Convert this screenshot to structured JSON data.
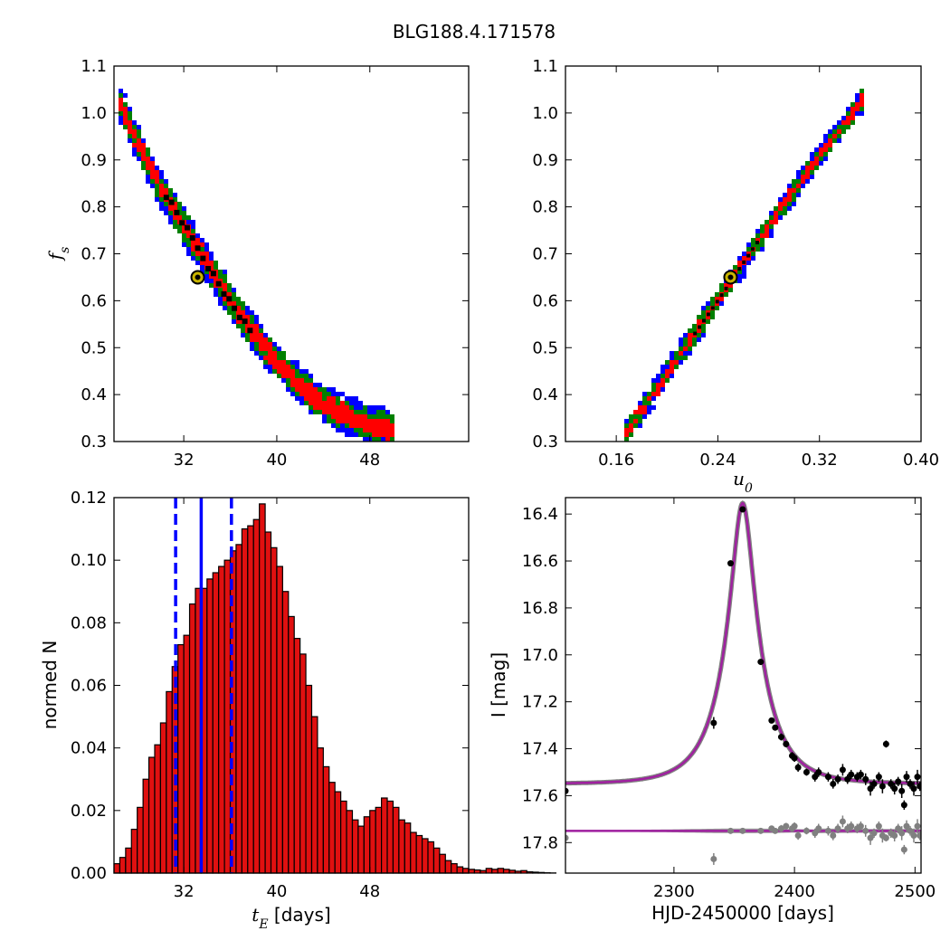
{
  "figure_title": "BLG188.4.171578",
  "colors": {
    "sigma3": "#0000ff",
    "sigma2": "#008000",
    "sigma1": "#ff0000",
    "sample": "#000000",
    "best_fit_marker": "#c8b400",
    "hist_bar": "#e01010",
    "hist_lines": "#0000ff",
    "model_curve": "#a020a0",
    "data_points": "#000000",
    "residual_points": "#808080"
  },
  "chart_data": [
    {
      "id": "tE-fs",
      "type": "heatmap",
      "xlabel": "",
      "ylabel": "f_s",
      "xlim": [
        26,
        56.5
      ],
      "ylim": [
        0.3,
        1.1
      ],
      "xticks": [
        32,
        40,
        48
      ],
      "yticks": [
        0.3,
        0.4,
        0.5,
        0.6,
        0.7,
        0.8,
        0.9,
        1.0,
        1.1
      ],
      "yticks_labels": [
        "0.3",
        "0.4",
        "0.5",
        "0.6",
        "0.7",
        "0.8",
        "0.9",
        "1.0",
        "1.1"
      ],
      "confidence_levels": [
        "3 sigma",
        "2 sigma",
        "1 sigma"
      ],
      "ridge": [
        [
          26.3,
          1.03
        ],
        [
          28,
          0.94
        ],
        [
          30,
          0.84
        ],
        [
          32,
          0.76
        ],
        [
          34,
          0.68
        ],
        [
          36,
          0.6
        ],
        [
          38,
          0.53
        ],
        [
          40,
          0.47
        ],
        [
          42,
          0.42
        ],
        [
          44,
          0.38
        ],
        [
          46,
          0.355
        ],
        [
          48,
          0.335
        ],
        [
          50,
          0.325
        ]
      ],
      "best_fit": {
        "x": 33.2,
        "y": 0.65
      }
    },
    {
      "id": "u0-fs",
      "type": "heatmap",
      "xlabel": "u_0",
      "ylabel": "",
      "xlim": [
        0.12,
        0.4
      ],
      "ylim": [
        0.3,
        1.1
      ],
      "xticks": [
        0.16,
        0.24,
        0.32,
        0.4
      ],
      "xticks_labels": [
        "0.16",
        "0.24",
        "0.32",
        "0.40"
      ],
      "yticks": [
        0.3,
        0.4,
        0.5,
        0.6,
        0.7,
        0.8,
        0.9,
        1.0,
        1.1
      ],
      "yticks_labels": [
        "0.3",
        "0.4",
        "0.5",
        "0.6",
        "0.7",
        "0.8",
        "0.9",
        "1.0",
        "1.1"
      ],
      "confidence_levels": [
        "3 sigma",
        "2 sigma",
        "1 sigma"
      ],
      "ridge": [
        [
          0.168,
          0.32
        ],
        [
          0.2,
          0.445
        ],
        [
          0.24,
          0.6
        ],
        [
          0.28,
          0.76
        ],
        [
          0.32,
          0.91
        ],
        [
          0.355,
          1.03
        ]
      ],
      "best_fit": {
        "x": 0.25,
        "y": 0.65
      }
    },
    {
      "id": "tE-histogram",
      "type": "bar",
      "xlabel": "t_E [days]",
      "ylabel": "normed N",
      "xlim": [
        26,
        56.5
      ],
      "ylim": [
        0,
        0.12
      ],
      "xticks": [
        32,
        40,
        48
      ],
      "yticks": [
        0,
        0.02,
        0.04,
        0.06,
        0.08,
        0.1,
        0.12
      ],
      "yticks_labels": [
        "0.00",
        "0.02",
        "0.04",
        "0.06",
        "0.08",
        "0.10",
        "0.12"
      ],
      "bin_start": 26,
      "bin_width": 0.5,
      "values": [
        0.003,
        0.005,
        0.008,
        0.014,
        0.021,
        0.03,
        0.037,
        0.041,
        0.048,
        0.058,
        0.066,
        0.073,
        0.076,
        0.086,
        0.091,
        0.091,
        0.094,
        0.096,
        0.098,
        0.1,
        0.103,
        0.105,
        0.11,
        0.111,
        0.113,
        0.118,
        0.109,
        0.104,
        0.098,
        0.09,
        0.082,
        0.075,
        0.07,
        0.06,
        0.05,
        0.04,
        0.034,
        0.029,
        0.026,
        0.023,
        0.02,
        0.017,
        0.015,
        0.018,
        0.02,
        0.021,
        0.024,
        0.023,
        0.021,
        0.017,
        0.016,
        0.013,
        0.012,
        0.011,
        0.01,
        0.008,
        0.006,
        0.004,
        0.003,
        0.002,
        0.0015,
        0.0012,
        0.001,
        0.0008,
        0.0015,
        0.0012,
        0.0015,
        0.0012,
        0.0009,
        0.0006,
        0.0008,
        0.0004,
        0.0003,
        0.0002,
        0.0001,
        5e-05
      ],
      "median": 33.5,
      "lower_bound": 31.3,
      "upper_bound": 36.1
    },
    {
      "id": "lightcurve",
      "type": "scatter",
      "xlabel": "HJD-2450000 [days]",
      "ylabel": "I [mag]",
      "xlim": [
        2210,
        2505
      ],
      "ylim": [
        17.93,
        16.33
      ],
      "y_inverted": true,
      "xticks": [
        2300,
        2400,
        2500
      ],
      "yticks": [
        16.4,
        16.6,
        16.8,
        17.0,
        17.2,
        17.4,
        17.6,
        17.8
      ],
      "yticks_labels": [
        "16.4",
        "16.6",
        "16.8",
        "17.0",
        "17.2",
        "17.4",
        "17.6",
        "17.8"
      ],
      "model": {
        "t0": 2357,
        "tE": 33.2,
        "u0": 0.25,
        "fs": 0.65,
        "I_base": 17.55,
        "residual_offset": 17.75
      },
      "series": [
        {
          "kind": "data",
          "x": [
            2210,
            2333,
            2347,
            2357,
            2372,
            2381,
            2384,
            2389,
            2393,
            2398,
            2400,
            2403,
            2410,
            2417,
            2420,
            2428,
            2432,
            2436,
            2440,
            2444,
            2447,
            2452,
            2455,
            2459,
            2463,
            2466,
            2470,
            2473,
            2476,
            2480,
            2483,
            2486,
            2489,
            2491,
            2493,
            2496,
            2499,
            2502,
            2504
          ],
          "y": [
            17.58,
            17.29,
            16.61,
            16.38,
            17.03,
            17.28,
            17.31,
            17.35,
            17.38,
            17.43,
            17.44,
            17.48,
            17.5,
            17.52,
            17.5,
            17.52,
            17.55,
            17.53,
            17.49,
            17.53,
            17.51,
            17.52,
            17.51,
            17.53,
            17.57,
            17.55,
            17.52,
            17.56,
            17.38,
            17.55,
            17.57,
            17.54,
            17.58,
            17.64,
            17.52,
            17.55,
            17.57,
            17.52,
            17.56
          ],
          "err": [
            0.01,
            0.025,
            0.005,
            0.004,
            0.008,
            0.012,
            0.012,
            0.015,
            0.014,
            0.016,
            0.016,
            0.018,
            0.015,
            0.02,
            0.02,
            0.02,
            0.02,
            0.02,
            0.025,
            0.02,
            0.02,
            0.02,
            0.02,
            0.025,
            0.03,
            0.02,
            0.02,
            0.03,
            0.015,
            0.02,
            0.025,
            0.02,
            0.03,
            0.02,
            0.025,
            0.02,
            0.03,
            0.03,
            0.02
          ]
        },
        {
          "kind": "residuals",
          "x": [
            2210,
            2333,
            2347,
            2357,
            2372,
            2381,
            2384,
            2389,
            2393,
            2398,
            2400,
            2403,
            2410,
            2417,
            2420,
            2428,
            2432,
            2436,
            2440,
            2444,
            2447,
            2452,
            2455,
            2459,
            2463,
            2466,
            2470,
            2473,
            2476,
            2480,
            2483,
            2486,
            2489,
            2491,
            2493,
            2496,
            2499,
            2502,
            2504
          ],
          "y": [
            17.78,
            17.87,
            17.75,
            17.75,
            17.75,
            17.74,
            17.75,
            17.74,
            17.73,
            17.74,
            17.73,
            17.77,
            17.75,
            17.76,
            17.74,
            17.75,
            17.77,
            17.74,
            17.71,
            17.74,
            17.73,
            17.74,
            17.73,
            17.75,
            17.78,
            17.76,
            17.73,
            17.77,
            17.78,
            17.76,
            17.77,
            17.74,
            17.76,
            17.83,
            17.73,
            17.75,
            17.77,
            17.73,
            17.77
          ],
          "err": [
            0.01,
            0.025,
            0.005,
            0.004,
            0.008,
            0.012,
            0.012,
            0.015,
            0.014,
            0.016,
            0.016,
            0.018,
            0.015,
            0.02,
            0.02,
            0.02,
            0.02,
            0.02,
            0.025,
            0.02,
            0.02,
            0.02,
            0.02,
            0.025,
            0.03,
            0.02,
            0.02,
            0.03,
            0.015,
            0.02,
            0.025,
            0.02,
            0.03,
            0.02,
            0.025,
            0.02,
            0.03,
            0.03,
            0.02
          ]
        }
      ]
    }
  ]
}
